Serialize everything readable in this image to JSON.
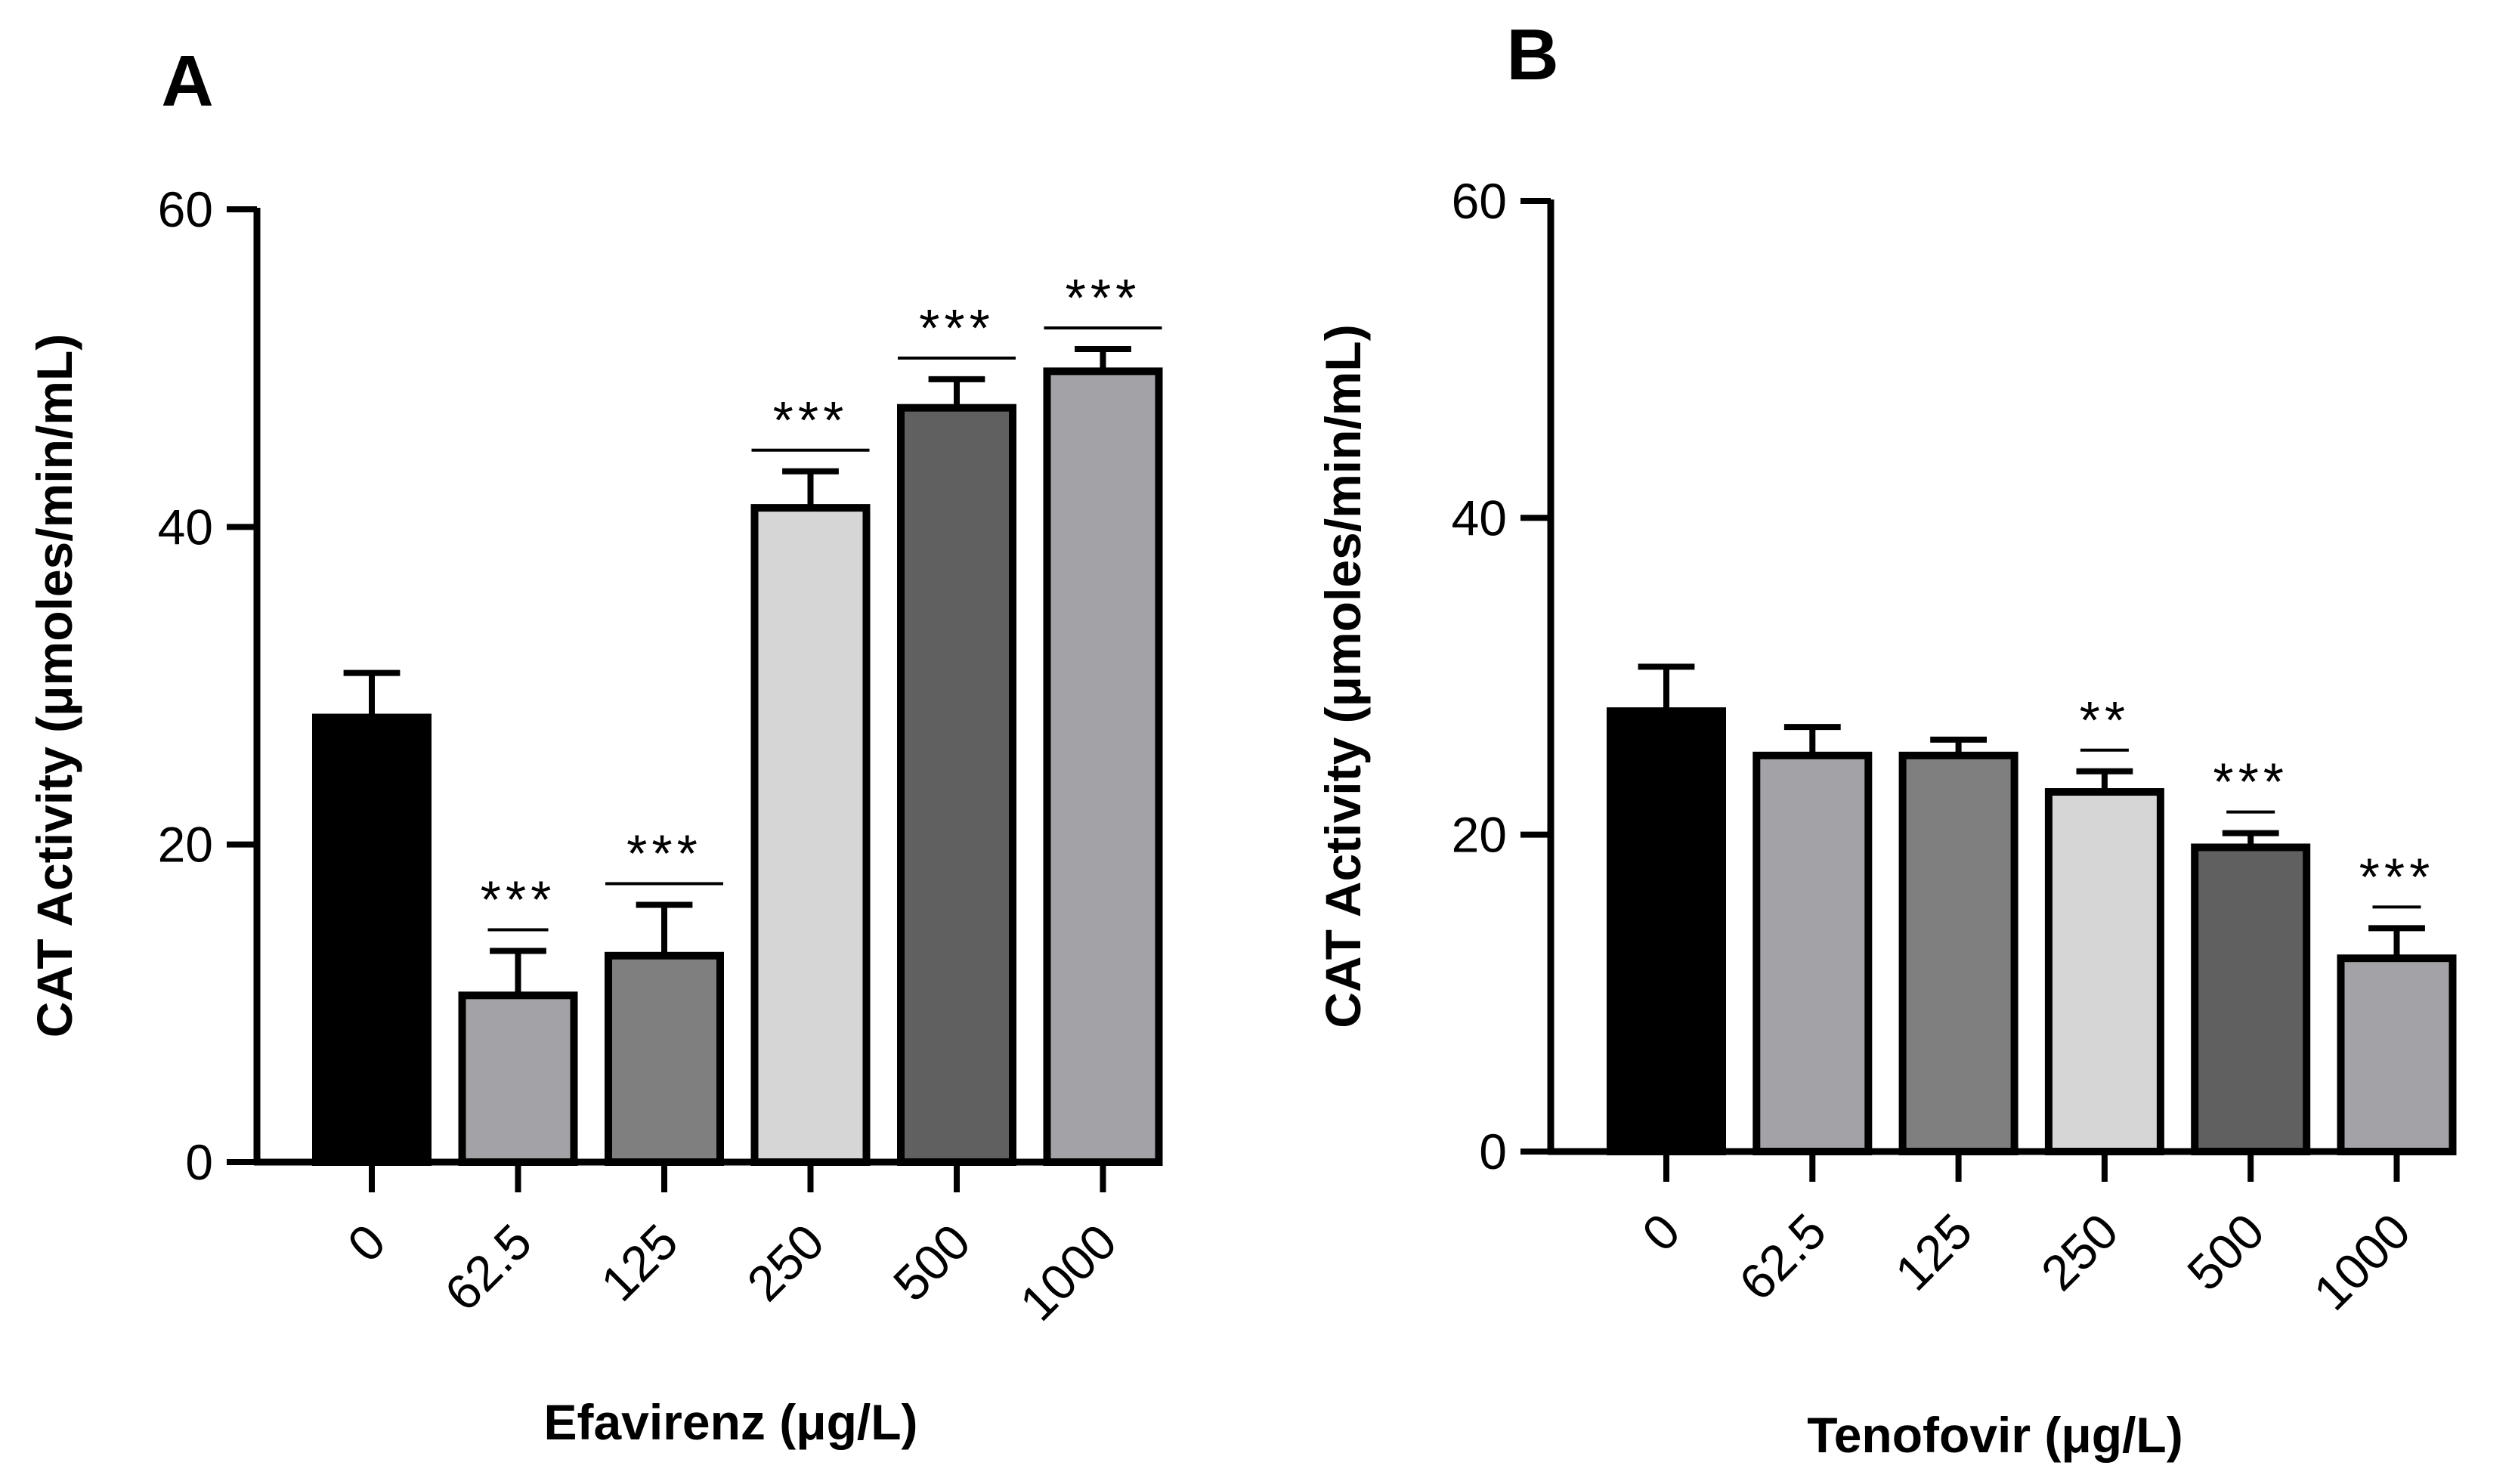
{
  "figure_title": "",
  "chart_data": [
    {
      "panel": "A",
      "type": "bar",
      "categories": [
        "0",
        "62.5",
        "125",
        "250",
        "500",
        "1000"
      ],
      "values": [
        28.0,
        10.5,
        13.0,
        41.2,
        47.5,
        49.8
      ],
      "errors": [
        2.8,
        2.8,
        3.2,
        2.3,
        1.8,
        1.4
      ],
      "significance": [
        "",
        "***",
        "***",
        "***",
        "***",
        "***"
      ],
      "colors": [
        "#000000",
        "#a3a3a7",
        "#7f7f7f",
        "#d6d6d6",
        "#606060",
        "#a3a3a7"
      ],
      "ylabel": "CAT Activity (μmoles/min/mL)",
      "xlabel": "Efavirenz  (μg/L)",
      "ylim": [
        0,
        60
      ],
      "yticks": [
        0,
        20,
        40,
        60
      ],
      "grid": false,
      "legend": "none"
    },
    {
      "panel": "B",
      "type": "bar",
      "categories": [
        "0",
        "62.5",
        "125",
        "250",
        "500",
        "1000"
      ],
      "values": [
        27.8,
        25.0,
        25.0,
        22.7,
        19.2,
        12.2
      ],
      "errors": [
        2.8,
        1.8,
        1.0,
        1.3,
        0.9,
        1.9
      ],
      "significance": [
        "",
        "",
        "",
        "**",
        "***",
        "***"
      ],
      "colors": [
        "#000000",
        "#a3a3a7",
        "#7f7f7f",
        "#d6d6d6",
        "#606060",
        "#a3a3a7"
      ],
      "ylabel": "CAT Activity (μmoles/min/mL)",
      "xlabel": "Tenofovir (μg/L)",
      "ylim": [
        0,
        60
      ],
      "yticks": [
        0,
        20,
        40,
        60
      ],
      "grid": false,
      "legend": "none"
    }
  ]
}
